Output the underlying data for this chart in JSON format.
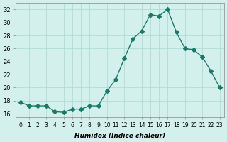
{
  "x": [
    0,
    1,
    2,
    3,
    4,
    5,
    6,
    7,
    8,
    9,
    10,
    11,
    12,
    13,
    14,
    15,
    16,
    17,
    18,
    19,
    20,
    21,
    22,
    23
  ],
  "y": [
    17.8,
    17.2,
    17.2,
    17.2,
    16.3,
    16.2,
    16.7,
    16.7,
    17.2,
    17.2,
    19.5,
    21.2,
    24.5,
    27.5,
    28.7,
    31.2,
    31.0,
    32.0,
    28.5,
    26.0,
    25.8,
    24.7,
    22.5,
    20.0
  ],
  "line_color": "#1a7a6a",
  "marker": "D",
  "marker_size": 3,
  "bg_color": "#d4f0ec",
  "grid_color": "#aad8d0",
  "ylabel_ticks": [
    16,
    18,
    20,
    22,
    24,
    26,
    28,
    30,
    32
  ],
  "xlabel": "Humidex (Indice chaleur)",
  "xlim": [
    -0.5,
    23.5
  ],
  "ylim": [
    15.5,
    33.0
  ]
}
